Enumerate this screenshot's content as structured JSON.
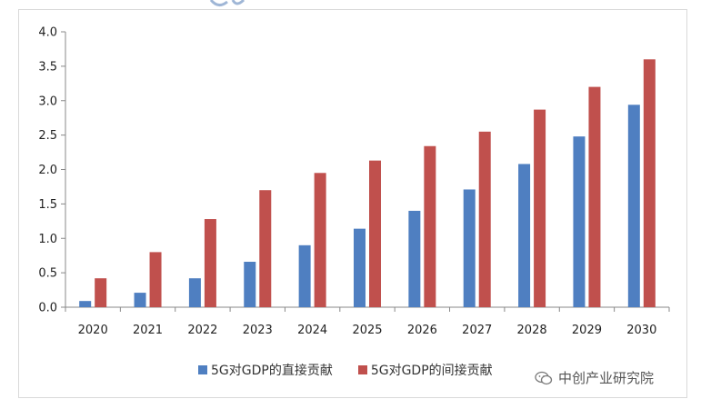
{
  "watermark": {
    "text": "中创产业研究院",
    "icon": "wechat-icon"
  },
  "colors": {
    "direct": "#4f7fc1",
    "indirect": "#c0504d",
    "axis": "#888888"
  },
  "chart_data": {
    "type": "bar",
    "title": "",
    "xlabel": "",
    "ylabel": "",
    "ylim": [
      0,
      4.0
    ],
    "yticks": [
      "0.0",
      "0.5",
      "1.0",
      "1.5",
      "2.0",
      "2.5",
      "3.0",
      "3.5",
      "4.0"
    ],
    "categories": [
      "2020",
      "2021",
      "2022",
      "2023",
      "2024",
      "2025",
      "2026",
      "2027",
      "2028",
      "2029",
      "2030"
    ],
    "series": [
      {
        "name": "5G对GDP的直接贡献",
        "values": [
          0.09,
          0.21,
          0.42,
          0.66,
          0.9,
          1.14,
          1.4,
          1.71,
          2.08,
          2.48,
          2.94
        ]
      },
      {
        "name": "5G对GDP的间接贡献",
        "values": [
          0.42,
          0.8,
          1.28,
          1.7,
          1.95,
          2.13,
          2.34,
          2.55,
          2.87,
          3.2,
          3.6
        ]
      }
    ],
    "grid": false,
    "legend": "bottom"
  }
}
